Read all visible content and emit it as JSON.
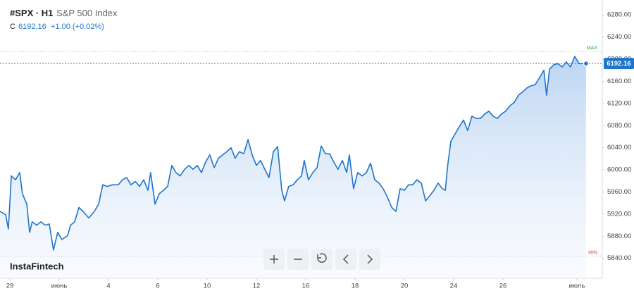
{
  "chart_data": {
    "type": "area",
    "symbol": "#SPX · H1",
    "title": "S&P 500 Index",
    "close_label": "C",
    "last_price": 6192.16,
    "change_label": "+1.00 (+0.02%)",
    "brand": "InstaFintech",
    "max_label": "MAX",
    "min_label": "MIN",
    "max_line": 6214,
    "min_line": 5844,
    "x": [
      -0.4,
      -0.17,
      -0.06,
      0.06,
      0.23,
      0.4,
      0.51,
      0.69,
      0.8,
      0.91,
      1.09,
      1.26,
      1.43,
      1.6,
      1.77,
      1.94,
      2.11,
      2.34,
      2.46,
      2.63,
      2.8,
      2.97,
      3.2,
      3.43,
      3.6,
      3.77,
      3.94,
      4.17,
      4.4,
      4.57,
      4.74,
      4.91,
      5.09,
      5.26,
      5.43,
      5.6,
      5.71,
      5.89,
      6.06,
      6.23,
      6.4,
      6.57,
      6.74,
      6.91,
      7.09,
      7.26,
      7.43,
      7.6,
      7.77,
      7.94,
      8.11,
      8.29,
      8.46,
      8.63,
      8.8,
      8.97,
      9.14,
      9.31,
      9.49,
      9.66,
      9.83,
      10,
      10.17,
      10.34,
      10.51,
      10.69,
      10.86,
      11.03,
      11.14,
      11.31,
      11.49,
      11.66,
      11.83,
      11.94,
      12.11,
      12.29,
      12.46,
      12.63,
      12.8,
      12.97,
      13.14,
      13.31,
      13.49,
      13.66,
      13.77,
      13.94,
      14.11,
      14.29,
      14.46,
      14.63,
      14.8,
      14.97,
      15.14,
      15.31,
      15.49,
      15.66,
      15.83,
      16,
      16.17,
      16.34,
      16.51,
      16.69,
      16.86,
      17.03,
      17.2,
      17.37,
      17.54,
      17.66,
      17.77,
      17.89,
      18.06,
      18.23,
      18.4,
      18.57,
      18.74,
      18.91,
      19.09,
      19.26,
      19.43,
      19.6,
      19.77,
      19.94,
      20.11,
      20.29,
      20.46,
      20.63,
      20.8,
      20.97,
      21.14,
      21.31,
      21.49,
      21.66,
      21.77,
      21.89,
      22.06,
      22.23,
      22.4,
      22.57,
      22.74,
      22.91,
      23.09,
      23.26,
      23.37
    ],
    "series": [
      {
        "color": "#1f74cc",
        "values": [
          5925,
          5919,
          5893,
          5989,
          5982,
          5995,
          5957,
          5938,
          5887,
          5906,
          5900,
          5906,
          5900,
          5902,
          5855,
          5887,
          5874,
          5881,
          5900,
          5906,
          5932,
          5925,
          5913,
          5925,
          5938,
          5973,
          5970,
          5973,
          5973,
          5982,
          5986,
          5973,
          5979,
          5970,
          5982,
          5963,
          5995,
          5938,
          5957,
          5963,
          5970,
          6008,
          5995,
          5989,
          6001,
          6008,
          6001,
          6008,
          5995,
          6014,
          6027,
          6004,
          6021,
          6027,
          6033,
          6040,
          6021,
          6033,
          6029,
          6055,
          6027,
          6008,
          6017,
          6001,
          5986,
          6033,
          6042,
          5963,
          5944,
          5970,
          5973,
          5982,
          5989,
          6017,
          5982,
          5995,
          6004,
          6043,
          6029,
          6029,
          6014,
          6001,
          6017,
          5995,
          6027,
          5966,
          5995,
          5989,
          5995,
          6012,
          5982,
          5976,
          5966,
          5951,
          5932,
          5925,
          5966,
          5963,
          5973,
          5973,
          5982,
          5976,
          5944,
          5953,
          5963,
          5976,
          5966,
          5963,
          6012,
          6052,
          6065,
          6078,
          6090,
          6071,
          6097,
          6093,
          6093,
          6101,
          6106,
          6097,
          6093,
          6101,
          6106,
          6116,
          6122,
          6135,
          6141,
          6148,
          6152,
          6154,
          6167,
          6180,
          6135,
          6182,
          6190,
          6192,
          6186,
          6195,
          6186,
          6205,
          6192,
          6192,
          6192.16
        ]
      }
    ],
    "xlim": [
      -0.4,
      24.03
    ],
    "xticks": [
      {
        "value": 0,
        "label": "29"
      },
      {
        "value": 2,
        "label": "июнь"
      },
      {
        "value": 4,
        "label": "4"
      },
      {
        "value": 6,
        "label": "6"
      },
      {
        "value": 8,
        "label": "10"
      },
      {
        "value": 10,
        "label": "12"
      },
      {
        "value": 12,
        "label": "16"
      },
      {
        "value": 14,
        "label": "18"
      },
      {
        "value": 16,
        "label": "20"
      },
      {
        "value": 18,
        "label": "24"
      },
      {
        "value": 20,
        "label": "26"
      },
      {
        "value": 23,
        "label": "июль"
      }
    ],
    "ylim": [
      5804,
      6307
    ],
    "yticks": [
      {
        "value": 5840,
        "label": "5840.00"
      },
      {
        "value": 5880,
        "label": "5880.00"
      },
      {
        "value": 5920,
        "label": "5920.00"
      },
      {
        "value": 5960,
        "label": "5960.00"
      },
      {
        "value": 6000,
        "label": "6000.00"
      },
      {
        "value": 6040,
        "label": "6040.00"
      },
      {
        "value": 6080,
        "label": "6080.00"
      },
      {
        "value": 6120,
        "label": "6120.00"
      },
      {
        "value": 6160,
        "label": "6160.00"
      },
      {
        "value": 6200,
        "label": "6200.00"
      },
      {
        "value": 6240,
        "label": "6240.00"
      },
      {
        "value": 6280,
        "label": "6280.00"
      }
    ],
    "grid": false
  }
}
